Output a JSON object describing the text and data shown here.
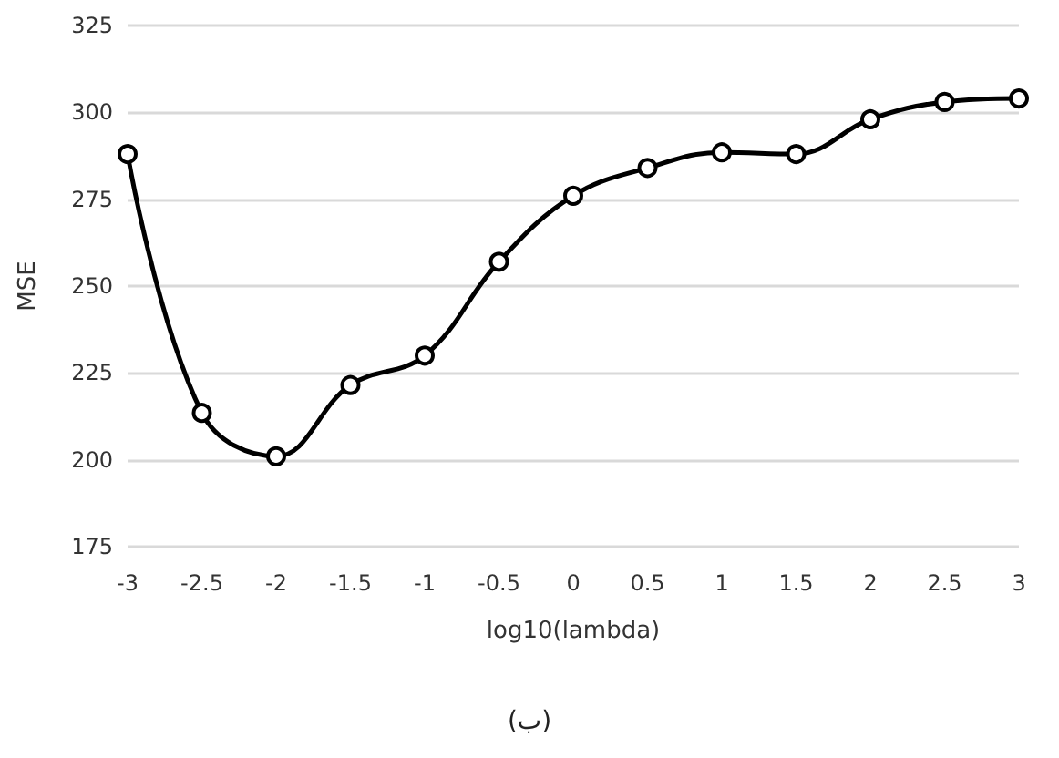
{
  "chart_data": {
    "type": "line",
    "xlabel": "log10(lambda)",
    "ylabel": "MSE",
    "annotations": [
      "(ب)"
    ],
    "categories": [
      "-3",
      "-2.5",
      "-2",
      "-1.5",
      "-1",
      "-0.5",
      "0",
      "0.5",
      "1",
      "1.5",
      "2",
      "2.5",
      "3"
    ],
    "series": [
      {
        "color": "#000000",
        "values": [
          288,
          213.5,
          201,
          221.5,
          230,
          257,
          276,
          284,
          288.5,
          288,
          298,
          303,
          304
        ]
      }
    ],
    "ylim": [
      175,
      325
    ],
    "yticks": [
      175,
      200,
      225,
      250,
      275,
      300,
      325
    ],
    "grid": "y",
    "marker": "circle",
    "line_style": "solid"
  }
}
